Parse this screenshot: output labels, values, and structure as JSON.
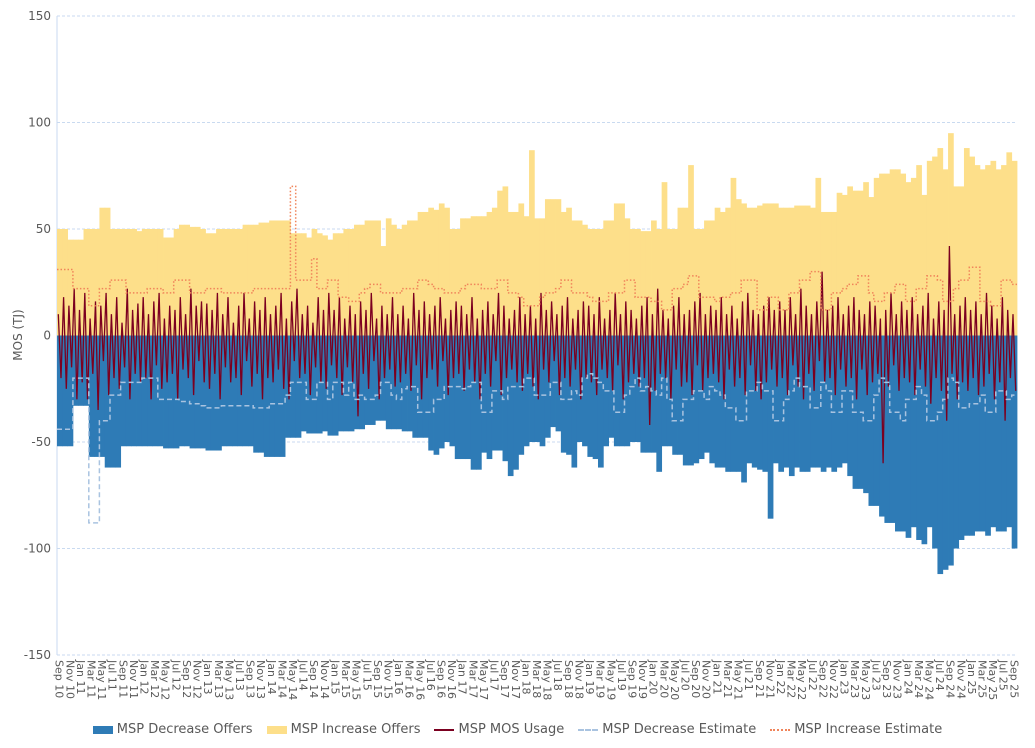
{
  "chart_data": {
    "type": "bar",
    "title": "",
    "xlabel": "",
    "ylabel": "MOS (TJ)",
    "ylim": [
      -150,
      150
    ],
    "yticks": [
      150,
      100,
      50,
      0,
      -50,
      -100,
      -150
    ],
    "grid": true,
    "legend_position": "bottom",
    "start_month": "Sep 10",
    "end_month": "Sep 25",
    "x_labels": [
      "Sep 10",
      "Nov 10",
      "Jan 11",
      "Mar 11",
      "May 11",
      "Jul 11",
      "Sep 11",
      "Nov 11",
      "Jan 12",
      "Mar 12",
      "May 12",
      "Jul 12",
      "Sep 12",
      "Nov 12",
      "Jan 13",
      "Mar 13",
      "May 13",
      "Jul 13",
      "Sep 13",
      "Nov 13",
      "Jan 14",
      "Mar 14",
      "May 14",
      "Jul 14",
      "Sep 14",
      "Nov 14",
      "Jan 15",
      "Mar 15",
      "May 15",
      "Jul 15",
      "Sep 15",
      "Nov 15",
      "Jan 16",
      "Mar 16",
      "May 16",
      "Jul 16",
      "Sep 16",
      "Nov 16",
      "Jan 17",
      "Mar 17",
      "May 17",
      "Jul 17",
      "Sep 17",
      "Nov 17",
      "Jan 18",
      "Mar 18",
      "May 18",
      "Jul 18",
      "Sep 18",
      "Nov 18",
      "Jan 19",
      "Mar 19",
      "May 19",
      "Jul 19",
      "Sep 19",
      "Nov 19",
      "Jan 20",
      "Mar 20",
      "May 20",
      "Jul 20",
      "Sep 20",
      "Nov 20",
      "Jan 21",
      "Mar 21",
      "May 21",
      "Jul 21",
      "Sep 21",
      "Nov 21",
      "Jan 22",
      "Mar 22",
      "May 22",
      "Jul 22",
      "Sep 22",
      "Nov 22",
      "Jan 23",
      "Mar 23",
      "May 23",
      "Jul 23",
      "Sep 23",
      "Nov 23",
      "Jan 24",
      "Mar 24",
      "May 24",
      "Jul 24",
      "Sep 24",
      "Nov 24",
      "Jan 25",
      "Mar 25",
      "May 25",
      "Jul 25",
      "Sep 25"
    ],
    "colors": {
      "decrease_offers": "#2E7BB6",
      "increase_offers": "#FDDF8A",
      "mos_usage": "#7B0020",
      "decrease_estimate": "#A9C3E0",
      "increase_estimate": "#F0845A",
      "grid": "#C9DAF0"
    },
    "series": [
      {
        "name": "MSP Decrease Offers",
        "kind": "monthly-bar",
        "values": [
          -52,
          -52,
          -52,
          -33,
          -33,
          -33,
          -57,
          -57,
          -57,
          -62,
          -62,
          -62,
          -52,
          -52,
          -52,
          -52,
          -52,
          -52,
          -52,
          -52,
          -53,
          -53,
          -53,
          -52,
          -52,
          -53,
          -53,
          -53,
          -54,
          -54,
          -54,
          -52,
          -52,
          -52,
          -52,
          -52,
          -52,
          -55,
          -55,
          -57,
          -57,
          -57,
          -57,
          -48,
          -48,
          -48,
          -45,
          -46,
          -46,
          -46,
          -45,
          -47,
          -47,
          -45,
          -45,
          -45,
          -44,
          -44,
          -42,
          -42,
          -40,
          -40,
          -44,
          -44,
          -44,
          -45,
          -45,
          -48,
          -48,
          -48,
          -54,
          -56,
          -53,
          -50,
          -52,
          -58,
          -58,
          -58,
          -63,
          -63,
          -55,
          -58,
          -54,
          -54,
          -59,
          -66,
          -63,
          -56,
          -52,
          -50,
          -50,
          -52,
          -48,
          -43,
          -45,
          -55,
          -56,
          -62,
          -50,
          -52,
          -57,
          -58,
          -62,
          -52,
          -48,
          -52,
          -52,
          -52,
          -50,
          -50,
          -55,
          -55,
          -55,
          -64,
          -52,
          -52,
          -56,
          -56,
          -61,
          -61,
          -60,
          -58,
          -55,
          -60,
          -62,
          -62,
          -64,
          -64,
          -64,
          -69,
          -60,
          -62,
          -63,
          -64,
          -86,
          -60,
          -64,
          -62,
          -66,
          -62,
          -64,
          -64,
          -62,
          -62,
          -64,
          -62,
          -64,
          -62,
          -60,
          -66,
          -72,
          -72,
          -74,
          -80,
          -80,
          -85,
          -88,
          -88,
          -92,
          -92,
          -95,
          -90,
          -96,
          -98,
          -90,
          -100,
          -112,
          -110,
          -108,
          -100,
          -96,
          -94,
          -94,
          -92,
          -92,
          -94,
          -90,
          -92,
          -92,
          -90,
          -100
        ]
      },
      {
        "name": "MSP Increase Offers",
        "kind": "monthly-bar",
        "values": [
          50,
          50,
          45,
          45,
          45,
          50,
          50,
          50,
          60,
          60,
          50,
          50,
          50,
          50,
          50,
          49,
          50,
          50,
          50,
          50,
          46,
          46,
          50,
          52,
          52,
          51,
          51,
          50,
          48,
          48,
          50,
          50,
          50,
          50,
          50,
          52,
          52,
          52,
          53,
          53,
          54,
          54,
          54,
          54,
          48,
          48,
          48,
          46,
          50,
          48,
          47,
          45,
          48,
          48,
          50,
          50,
          52,
          52,
          54,
          54,
          54,
          42,
          55,
          52,
          50,
          52,
          54,
          54,
          58,
          58,
          60,
          59,
          62,
          60,
          50,
          50,
          55,
          55,
          56,
          56,
          56,
          58,
          60,
          68,
          70,
          58,
          58,
          62,
          56,
          87,
          55,
          55,
          64,
          64,
          64,
          58,
          60,
          54,
          54,
          52,
          50,
          50,
          50,
          54,
          54,
          62,
          62,
          55,
          50,
          50,
          49,
          49,
          54,
          50,
          72,
          50,
          50,
          60,
          60,
          80,
          50,
          50,
          54,
          54,
          60,
          58,
          60,
          74,
          64,
          62,
          60,
          60,
          61,
          62,
          62,
          62,
          60,
          60,
          60,
          61,
          61,
          61,
          60,
          74,
          58,
          58,
          58,
          67,
          66,
          70,
          68,
          68,
          72,
          65,
          74,
          76,
          76,
          78,
          78,
          76,
          72,
          74,
          80,
          66,
          82,
          84,
          88,
          78,
          95,
          70,
          70,
          88,
          84,
          80,
          78,
          80,
          82,
          78,
          80,
          86,
          82
        ]
      },
      {
        "name": "MSP MOS Usage",
        "kind": "line",
        "points_per_month": 2,
        "values": [
          10,
          -20,
          18,
          -25,
          14,
          -15,
          22,
          -30,
          12,
          -22,
          20,
          -30,
          8,
          -18,
          16,
          -35,
          14,
          -12,
          20,
          -28,
          10,
          -20,
          18,
          -25,
          6,
          -15,
          22,
          -30,
          12,
          -18,
          15,
          -22,
          18,
          -20,
          10,
          -30,
          16,
          -14,
          20,
          -25,
          8,
          -22,
          14,
          -18,
          12,
          -30,
          18,
          -16,
          10,
          -20,
          22,
          -28,
          14,
          -12,
          16,
          -22,
          15,
          -25,
          12,
          -18,
          20,
          -30,
          10,
          -15,
          18,
          -22,
          6,
          -20,
          14,
          -28,
          20,
          -12,
          8,
          -24,
          16,
          -18,
          12,
          -30,
          18,
          -20,
          10,
          -22,
          14,
          -16,
          20,
          -25,
          8,
          -30,
          16,
          -12,
          22,
          -20,
          10,
          -18,
          14,
          -28,
          6,
          -15,
          18,
          -22,
          12,
          -25,
          20,
          -14,
          12,
          -20,
          18,
          -28,
          8,
          -15,
          14,
          -22,
          10,
          -38,
          16,
          -18,
          12,
          -25,
          20,
          -12,
          8,
          -30,
          14,
          -20,
          10,
          -16,
          18,
          -24,
          10,
          -22,
          14,
          -18,
          8,
          -26,
          20,
          -14,
          12,
          -30,
          16,
          -20,
          10,
          -16,
          14,
          -24,
          18,
          -12,
          8,
          -28,
          12,
          -20,
          16,
          -18,
          14,
          -26,
          10,
          -16,
          18,
          -22,
          8,
          -30,
          12,
          -18,
          16,
          -24,
          10,
          -12,
          20,
          -28,
          14,
          -20,
          8,
          -16,
          12,
          -22,
          18,
          -26,
          10,
          -18,
          14,
          -24,
          8,
          -30,
          20,
          -16,
          12,
          -22,
          16,
          -12,
          10,
          -28,
          14,
          -20,
          18,
          -24,
          8,
          -16,
          12,
          -30,
          16,
          -20,
          14,
          -22,
          10,
          -28,
          18,
          -16,
          8,
          -20,
          12,
          -26,
          20,
          -14,
          10,
          -30,
          16,
          -22,
          12,
          -18,
          8,
          -24,
          14,
          -20,
          18,
          -42,
          10,
          -26,
          22,
          -18,
          12,
          -20,
          8,
          -30,
          14,
          -16,
          18,
          -24,
          10,
          -22,
          12,
          -28,
          16,
          -14,
          20,
          -26,
          10,
          -20,
          14,
          -18,
          12,
          -22,
          18,
          -30,
          10,
          -16,
          14,
          -24,
          8,
          -20,
          16,
          -28,
          20,
          -14,
          12,
          -26,
          10,
          -30,
          14,
          -22,
          18,
          -16,
          12,
          -24,
          16,
          -20,
          12,
          -28,
          18,
          -14,
          10,
          -24,
          22,
          -30,
          14,
          -18,
          10,
          -26,
          16,
          -12,
          30,
          -22,
          12,
          -20,
          14,
          -28,
          18,
          -16,
          10,
          -24,
          14,
          -20,
          18,
          -30,
          12,
          -16,
          10,
          -28,
          16,
          -22,
          14,
          -18,
          8,
          -60,
          12,
          -24,
          20,
          -14,
          10,
          -26,
          16,
          -20,
          12,
          -22,
          18,
          -28,
          10,
          -16,
          14,
          -24,
          20,
          -32,
          8,
          -20,
          16,
          -26,
          12,
          -40,
          42,
          -18,
          10,
          -30,
          14,
          -22,
          18,
          -26,
          12,
          -20,
          16,
          -28,
          10,
          -24,
          20,
          -18,
          14,
          -30,
          8,
          -22,
          18,
          -40,
          12,
          -20,
          10,
          -26
        ]
      },
      {
        "name": "MSP Decrease Estimate",
        "kind": "step-line",
        "values": [
          -44,
          -44,
          -44,
          -20,
          -20,
          -20,
          -88,
          -88,
          -40,
          -40,
          -28,
          -28,
          -22,
          -22,
          -22,
          -22,
          -20,
          -20,
          -20,
          -30,
          -30,
          -30,
          -30,
          -31,
          -31,
          -32,
          -32,
          -33,
          -34,
          -34,
          -34,
          -33,
          -33,
          -33,
          -33,
          -33,
          -33,
          -34,
          -34,
          -34,
          -32,
          -32,
          -32,
          -28,
          -22,
          -22,
          -22,
          -30,
          -30,
          -22,
          -22,
          -30,
          -22,
          -22,
          -28,
          -22,
          -30,
          -28,
          -30,
          -30,
          -28,
          -22,
          -22,
          -28,
          -30,
          -25,
          -24,
          -24,
          -36,
          -36,
          -36,
          -30,
          -30,
          -24,
          -24,
          -24,
          -25,
          -24,
          -22,
          -22,
          -36,
          -36,
          -26,
          -26,
          -30,
          -24,
          -24,
          -24,
          -20,
          -20,
          -28,
          -28,
          -28,
          -22,
          -22,
          -30,
          -30,
          -26,
          -28,
          -20,
          -18,
          -20,
          -22,
          -26,
          -26,
          -36,
          -36,
          -28,
          -24,
          -20,
          -26,
          -24,
          -26,
          -28,
          -20,
          -30,
          -40,
          -40,
          -30,
          -30,
          -26,
          -26,
          -30,
          -24,
          -26,
          -28,
          -34,
          -34,
          -40,
          -40,
          -26,
          -26,
          -22,
          -26,
          -26,
          -40,
          -40,
          -30,
          -26,
          -20,
          -24,
          -24,
          -34,
          -34,
          -22,
          -26,
          -36,
          -36,
          -26,
          -26,
          -36,
          -36,
          -40,
          -40,
          -28,
          -20,
          -22,
          -36,
          -36,
          -40,
          -30,
          -30,
          -24,
          -28,
          -40,
          -40,
          -36,
          -30,
          -20,
          -22,
          -34,
          -34,
          -32,
          -32,
          -28,
          -36,
          -36,
          -26,
          -26,
          -30,
          -28
        ]
      },
      {
        "name": "MSP Increase Estimate",
        "kind": "step-line",
        "values": [
          31,
          31,
          31,
          22,
          22,
          22,
          14,
          14,
          22,
          22,
          26,
          26,
          26,
          20,
          20,
          20,
          20,
          22,
          22,
          22,
          20,
          20,
          26,
          26,
          26,
          20,
          20,
          20,
          22,
          22,
          22,
          20,
          20,
          20,
          20,
          20,
          20,
          22,
          22,
          22,
          22,
          22,
          22,
          22,
          70,
          26,
          26,
          26,
          36,
          22,
          22,
          26,
          26,
          18,
          18,
          16,
          16,
          20,
          22,
          24,
          24,
          20,
          20,
          20,
          20,
          22,
          22,
          22,
          26,
          26,
          24,
          22,
          22,
          20,
          20,
          20,
          22,
          24,
          24,
          24,
          22,
          22,
          22,
          26,
          26,
          20,
          20,
          18,
          14,
          14,
          14,
          18,
          20,
          20,
          22,
          26,
          26,
          20,
          20,
          20,
          18,
          16,
          16,
          16,
          20,
          20,
          20,
          26,
          26,
          18,
          18,
          18,
          16,
          16,
          12,
          12,
          22,
          22,
          24,
          28,
          28,
          18,
          18,
          18,
          16,
          18,
          18,
          20,
          20,
          26,
          26,
          26,
          12,
          12,
          18,
          18,
          12,
          12,
          20,
          20,
          26,
          26,
          30,
          30,
          12,
          12,
          20,
          20,
          22,
          24,
          24,
          28,
          28,
          20,
          16,
          16,
          20,
          20,
          24,
          24,
          16,
          16,
          22,
          22,
          28,
          28,
          26,
          16,
          16,
          22,
          26,
          26,
          32,
          32,
          16,
          16,
          14,
          14,
          26,
          26,
          24
        ]
      }
    ]
  },
  "legend": {
    "decrease_offers": "MSP Decrease Offers",
    "increase_offers": "MSP Increase Offers",
    "mos_usage": "MSP MOS Usage",
    "decrease_estimate": "MSP Decrease Estimate",
    "increase_estimate": "MSP Increase Estimate"
  }
}
